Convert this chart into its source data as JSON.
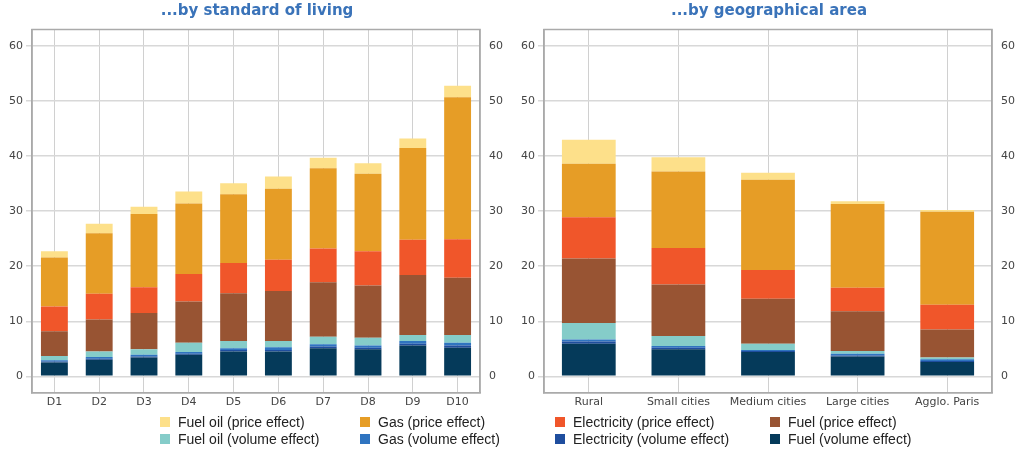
{
  "chart_data": [
    {
      "type": "bar",
      "title": "...by standard of living",
      "stacked": true,
      "grid": true,
      "legend": "bottom",
      "categories": [
        "D1",
        "D2",
        "D3",
        "D4",
        "D5",
        "D6",
        "D7",
        "D8",
        "D9",
        "D10"
      ],
      "ylim": [
        -3,
        63
      ],
      "yticks": [
        0,
        10,
        20,
        30,
        40,
        50,
        60
      ],
      "y2lim": [
        -3,
        63
      ],
      "y2ticks": [
        0,
        10,
        20,
        30,
        40,
        50,
        60
      ],
      "series": [
        {
          "name": "Fuel (volume effect)",
          "color": "#053a5a",
          "values": [
            2.5,
            3.0,
            3.4,
            3.9,
            4.5,
            4.5,
            5.1,
            4.9,
            5.6,
            5.2
          ]
        },
        {
          "name": "Electricity (volume effect)",
          "color": "#1f4e9e",
          "values": [
            0.2,
            0.2,
            0.2,
            0.2,
            0.3,
            0.3,
            0.3,
            0.3,
            0.3,
            0.4
          ]
        },
        {
          "name": "Gas (volume effect)",
          "color": "#2f74c0",
          "values": [
            0.2,
            0.3,
            0.3,
            0.3,
            0.3,
            0.5,
            0.4,
            0.4,
            0.5,
            0.5
          ]
        },
        {
          "name": "Fuel oil (volume effect)",
          "color": "#85ccc9",
          "values": [
            0.8,
            1.0,
            1.0,
            1.7,
            1.3,
            1.1,
            1.4,
            1.4,
            1.1,
            1.4
          ]
        },
        {
          "name": "Fuel (price effect)",
          "color": "#985433",
          "values": [
            4.5,
            5.8,
            6.6,
            7.5,
            8.7,
            9.1,
            9.9,
            9.5,
            10.9,
            10.4
          ]
        },
        {
          "name": "Electricity (price effect)",
          "color": "#f0562a",
          "values": [
            4.5,
            4.7,
            4.7,
            5.0,
            5.5,
            5.7,
            6.1,
            6.2,
            6.4,
            7.0
          ]
        },
        {
          "name": "Gas (price effect)",
          "color": "#e69d26",
          "values": [
            8.9,
            11.0,
            13.3,
            12.8,
            12.5,
            12.9,
            14.6,
            14.1,
            16.7,
            25.8
          ]
        },
        {
          "name": "Fuel oil (price effect)",
          "color": "#fde08a",
          "values": [
            1.1,
            1.7,
            1.3,
            2.2,
            2.0,
            2.2,
            1.9,
            1.9,
            1.7,
            2.1
          ]
        }
      ]
    },
    {
      "type": "bar",
      "title": "...by geographical area",
      "stacked": true,
      "grid": true,
      "categories": [
        "Rural",
        "Small cities",
        "Medium cities",
        "Large cities",
        "Agglo. Paris"
      ],
      "ylim": [
        -3,
        63
      ],
      "yticks": [
        0,
        10,
        20,
        30,
        40,
        50,
        60
      ],
      "y2lim": [
        -3,
        63
      ],
      "y2ticks": [
        0,
        10,
        20,
        30,
        40,
        50,
        60
      ],
      "series": [
        {
          "color": "#053a5a",
          "values": [
            5.9,
            4.9,
            4.4,
            3.6,
            2.6
          ]
        },
        {
          "color": "#1f4e9e",
          "values": [
            0.4,
            0.3,
            0.2,
            0.2,
            0.2
          ]
        },
        {
          "color": "#2f74c0",
          "values": [
            0.4,
            0.3,
            0.2,
            0.3,
            0.3
          ]
        },
        {
          "color": "#85ccc9",
          "values": [
            3.0,
            1.8,
            1.1,
            0.5,
            0.3
          ]
        },
        {
          "color": "#985433",
          "values": [
            11.7,
            9.4,
            8.2,
            7.2,
            5.1
          ]
        },
        {
          "color": "#f0562a",
          "values": [
            7.5,
            6.6,
            5.2,
            4.3,
            4.5
          ]
        },
        {
          "color": "#e69d26",
          "values": [
            9.7,
            13.9,
            16.4,
            15.2,
            16.9
          ]
        },
        {
          "color": "#fde08a",
          "values": [
            4.4,
            2.6,
            1.3,
            0.5,
            0.3
          ]
        }
      ]
    }
  ]
}
